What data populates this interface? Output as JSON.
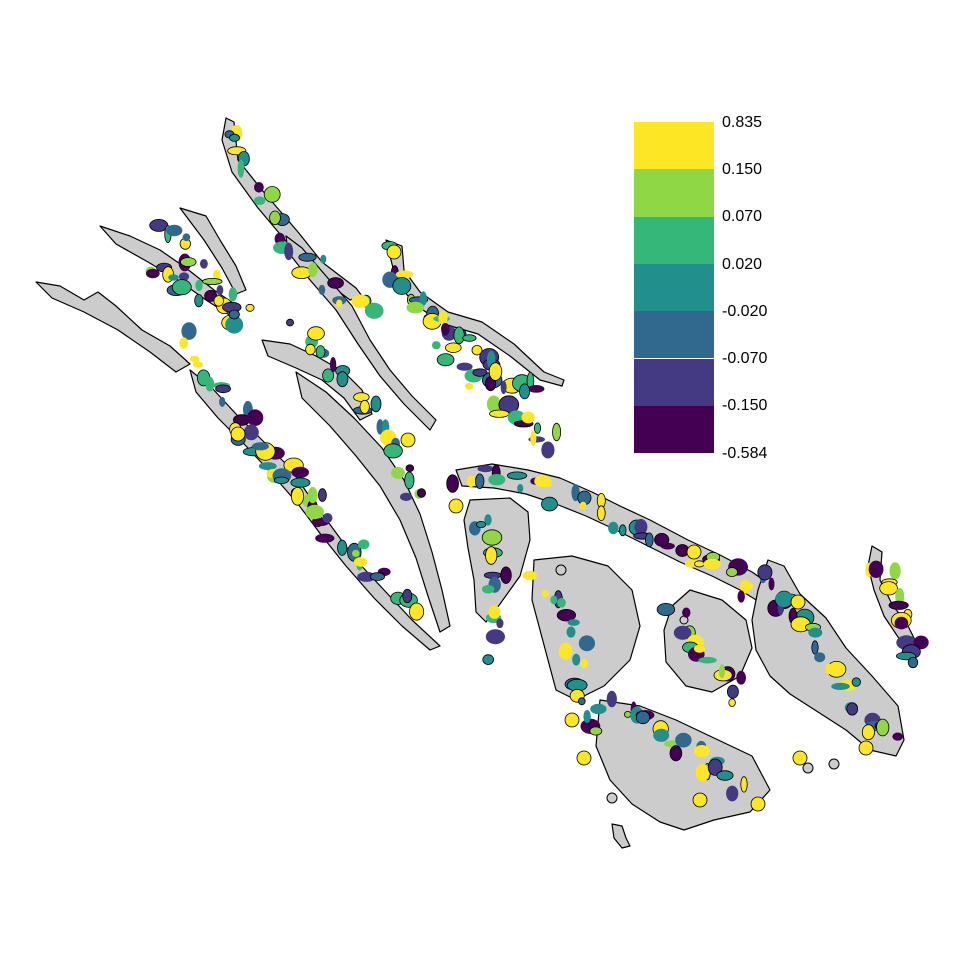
{
  "map": {
    "land_fill": "#cccccc",
    "land_stroke": "#000000",
    "background": "#ffffff"
  },
  "legend": {
    "palette": [
      "#fde725",
      "#8fd744",
      "#35b779",
      "#21908d",
      "#31688e",
      "#443a83",
      "#440154"
    ],
    "break_labels": [
      "0.835",
      "0.150",
      "0.070",
      "0.020",
      "-0.020",
      "-0.070",
      "-0.150",
      "-0.584"
    ]
  }
}
